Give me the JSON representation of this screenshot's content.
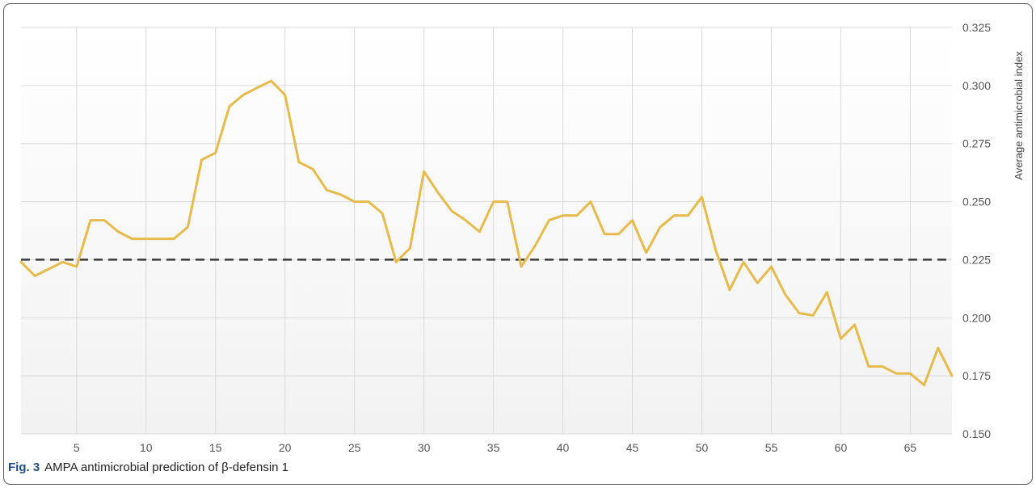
{
  "caption": {
    "label": "Fig. 3",
    "text": "AMPA antimicrobial prediction of β-defensin 1"
  },
  "colors": {
    "line": "#e5bb4e",
    "threshold": "#3a3a3a",
    "grid": "#d9d9d9",
    "frame": "#5c5c5c"
  },
  "chart_data": {
    "type": "line",
    "title": "",
    "xlabel": "",
    "ylabel": "Average antimicrobial index",
    "y_axis_side": "right",
    "xlim": [
      1,
      68
    ],
    "ylim": [
      0.15,
      0.325
    ],
    "x_ticks": [
      5,
      10,
      15,
      20,
      25,
      30,
      35,
      40,
      45,
      50,
      55,
      60,
      65
    ],
    "y_ticks": [
      "0.150",
      "0.175",
      "0.200",
      "0.225",
      "0.250",
      "0.275",
      "0.300",
      "0.325"
    ],
    "grid": true,
    "threshold": 0.225,
    "series": [
      {
        "x": [
          1,
          2,
          3,
          4,
          5,
          6,
          7,
          8,
          9,
          10,
          11,
          12,
          13,
          14,
          15,
          16,
          17,
          18,
          19,
          20,
          21,
          22,
          23,
          24,
          25,
          26,
          27,
          28,
          29,
          30,
          31,
          32,
          33,
          34,
          35,
          36,
          37,
          38,
          39,
          40,
          41,
          42,
          43,
          44,
          45,
          46,
          47,
          48,
          49,
          50,
          51,
          52,
          53,
          54,
          55,
          56,
          57,
          58,
          59,
          60,
          61,
          62,
          63,
          64,
          65,
          66,
          67,
          68
        ],
        "values": [
          0.224,
          0.218,
          0.221,
          0.224,
          0.222,
          0.242,
          0.242,
          0.237,
          0.234,
          0.234,
          0.234,
          0.234,
          0.239,
          0.268,
          0.271,
          0.291,
          0.296,
          0.299,
          0.302,
          0.296,
          0.267,
          0.264,
          0.255,
          0.253,
          0.25,
          0.25,
          0.245,
          0.224,
          0.23,
          0.263,
          0.254,
          0.246,
          0.242,
          0.237,
          0.25,
          0.25,
          0.222,
          0.231,
          0.242,
          0.244,
          0.244,
          0.25,
          0.236,
          0.236,
          0.242,
          0.228,
          0.239,
          0.244,
          0.244,
          0.252,
          0.229,
          0.212,
          0.224,
          0.215,
          0.222,
          0.21,
          0.202,
          0.201,
          0.211,
          0.191,
          0.197,
          0.179,
          0.179,
          0.176,
          0.176,
          0.171,
          0.187,
          0.175
        ]
      }
    ]
  }
}
